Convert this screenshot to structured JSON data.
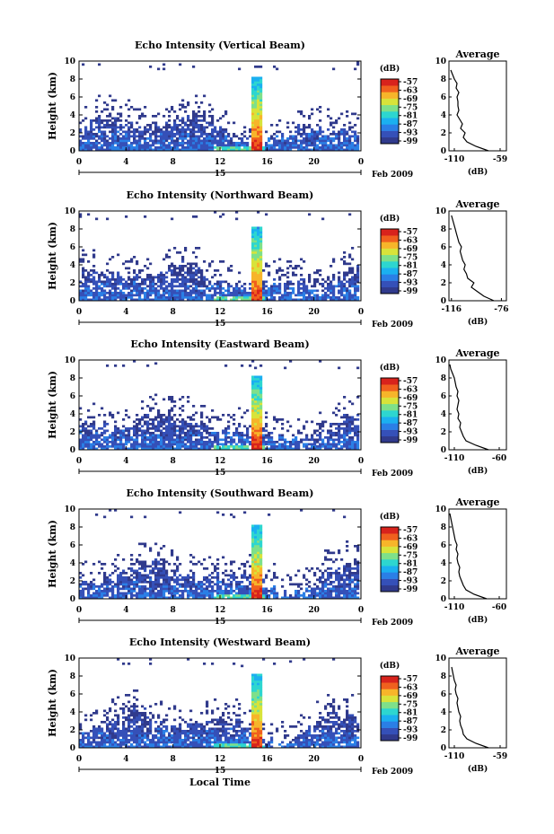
{
  "colors": {
    "colorbar": [
      "#303a8c",
      "#3550b8",
      "#2a7fe6",
      "#1bb0f0",
      "#2dd6d0",
      "#7ee08a",
      "#d8e33a",
      "#f7b52a",
      "#f0601e",
      "#d8231c"
    ],
    "background": "#ffffff",
    "line": "#000000"
  },
  "chart_data": [
    {
      "type": "heatmap",
      "title": "Echo Intensity (Vertical Beam)",
      "ylabel": "Height (km)",
      "x_ticks": [
        "0",
        "4",
        "8",
        "12",
        "16",
        "20",
        "0"
      ],
      "date_label": "15",
      "date_suffix": "Feb 2009",
      "ylim": [
        0,
        10
      ],
      "y_ticks": [
        "0",
        "2",
        "4",
        "6",
        "8",
        "10"
      ],
      "colorbar": {
        "title": "(dB)",
        "labels": [
          "-57",
          "-63",
          "-69",
          "-75",
          "-81",
          "-87",
          "-93",
          "-99"
        ]
      },
      "profile": {
        "title": "Average",
        "xlabel": "(dB)",
        "xlim": [
          -116,
          -52
        ],
        "x_ticks": [
          "-110",
          "-59"
        ],
        "height": [
          0,
          0.5,
          1,
          1.5,
          2,
          2.5,
          3,
          3.5,
          4,
          4.5,
          5,
          5.5,
          6,
          6.5,
          7,
          7.5,
          8,
          8.5,
          9
        ],
        "value": [
          -72,
          -86,
          -96,
          -100,
          -98,
          -103,
          -101,
          -104,
          -107,
          -105,
          -106,
          -106,
          -107,
          -105,
          -108,
          -107,
          -110,
          -112,
          -114
        ]
      }
    },
    {
      "type": "heatmap",
      "title": "Echo Intensity (Northward Beam)",
      "ylabel": "Height (km)",
      "x_ticks": [
        "0",
        "4",
        "8",
        "12",
        "16",
        "20",
        "0"
      ],
      "date_label": "15",
      "date_suffix": "Feb 2009",
      "ylim": [
        0,
        10
      ],
      "y_ticks": [
        "0",
        "2",
        "4",
        "6",
        "8",
        "10"
      ],
      "colorbar": {
        "title": "(dB)",
        "labels": [
          "-57",
          "-63",
          "-69",
          "-75",
          "-81",
          "-87",
          "-93",
          "-99"
        ]
      },
      "profile": {
        "title": "Average",
        "xlabel": "(dB)",
        "xlim": [
          -118,
          -72
        ],
        "x_ticks": [
          "-116",
          "-76"
        ],
        "height": [
          0,
          0.5,
          1,
          1.5,
          2,
          2.5,
          3,
          3.5,
          4,
          4.5,
          5,
          5.5,
          6,
          6.5,
          7,
          7.5,
          8,
          8.5,
          9,
          9.5
        ],
        "value": [
          -82,
          -90,
          -95,
          -100,
          -98,
          -103,
          -104,
          -106,
          -105,
          -107,
          -108,
          -109,
          -108,
          -110,
          -111,
          -112,
          -113,
          -114,
          -115,
          -116
        ]
      }
    },
    {
      "type": "heatmap",
      "title": "Echo Intensity (Eastward Beam)",
      "ylabel": "Height (km)",
      "x_ticks": [
        "0",
        "4",
        "8",
        "12",
        "16",
        "20",
        "0"
      ],
      "date_label": "15",
      "date_suffix": "Feb 2009",
      "ylim": [
        0,
        10
      ],
      "y_ticks": [
        "0",
        "2",
        "4",
        "6",
        "8",
        "10"
      ],
      "colorbar": {
        "title": "(dB)",
        "labels": [
          "-57",
          "-63",
          "-69",
          "-75",
          "-81",
          "-87",
          "-93",
          "-99"
        ]
      },
      "profile": {
        "title": "Average",
        "xlabel": "(dB)",
        "xlim": [
          -116,
          -52
        ],
        "x_ticks": [
          "-110",
          "-60"
        ],
        "height": [
          0,
          0.5,
          1,
          1.5,
          2,
          2.5,
          3,
          3.5,
          4,
          4.5,
          5,
          5.5,
          6,
          6.5,
          7,
          7.5,
          8,
          8.5,
          9,
          9.5
        ],
        "value": [
          -72,
          -86,
          -97,
          -100,
          -102,
          -104,
          -103,
          -106,
          -105,
          -107,
          -106,
          -105,
          -107,
          -106,
          -108,
          -109,
          -110,
          -112,
          -114,
          -115
        ]
      }
    },
    {
      "type": "heatmap",
      "title": "Echo Intensity (Southward Beam)",
      "ylabel": "Height (km)",
      "x_ticks": [
        "0",
        "4",
        "8",
        "12",
        "16",
        "20",
        "0"
      ],
      "date_label": "15",
      "date_suffix": "Feb 2009",
      "ylim": [
        0,
        10
      ],
      "y_ticks": [
        "0",
        "2",
        "4",
        "6",
        "8",
        "10"
      ],
      "colorbar": {
        "title": "(dB)",
        "labels": [
          "-57",
          "-63",
          "-69",
          "-75",
          "-81",
          "-87",
          "-93",
          "-99"
        ]
      },
      "profile": {
        "title": "Average",
        "xlabel": "(dB)",
        "xlim": [
          -116,
          -52
        ],
        "x_ticks": [
          "-110",
          "-60"
        ],
        "height": [
          0,
          0.5,
          1,
          1.5,
          2,
          2.5,
          3,
          3.5,
          4,
          4.5,
          5,
          5.5,
          6,
          6.5,
          7,
          7.5,
          8,
          8.5,
          9,
          9.5
        ],
        "value": [
          -74,
          -88,
          -97,
          -100,
          -102,
          -104,
          -105,
          -104,
          -106,
          -107,
          -106,
          -108,
          -107,
          -109,
          -110,
          -111,
          -112,
          -113,
          -114,
          -115
        ]
      }
    },
    {
      "type": "heatmap",
      "title": "Echo Intensity (Westward Beam)",
      "ylabel": "Height (km)",
      "x_ticks": [
        "0",
        "4",
        "8",
        "12",
        "16",
        "20",
        "0"
      ],
      "date_label": "15",
      "date_suffix": "Feb 2009",
      "xlabel": "Local Time",
      "ylim": [
        0,
        10
      ],
      "y_ticks": [
        "0",
        "2",
        "4",
        "6",
        "8",
        "10"
      ],
      "colorbar": {
        "title": "(dB)",
        "labels": [
          "-57",
          "-63",
          "-69",
          "-75",
          "-81",
          "-87",
          "-93",
          "-99"
        ]
      },
      "profile": {
        "title": "Average",
        "xlabel": "(dB)",
        "xlim": [
          -116,
          -52
        ],
        "x_ticks": [
          "-110",
          "-59"
        ],
        "height": [
          0,
          0.5,
          1,
          1.5,
          2,
          2.5,
          3,
          3.5,
          4,
          4.5,
          5,
          5.5,
          6,
          6.5,
          7,
          7.5,
          8,
          8.5,
          9
        ],
        "value": [
          -72,
          -86,
          -96,
          -100,
          -101,
          -103,
          -104,
          -103,
          -105,
          -106,
          -107,
          -106,
          -108,
          -109,
          -108,
          -110,
          -111,
          -112,
          -113
        ]
      }
    }
  ]
}
